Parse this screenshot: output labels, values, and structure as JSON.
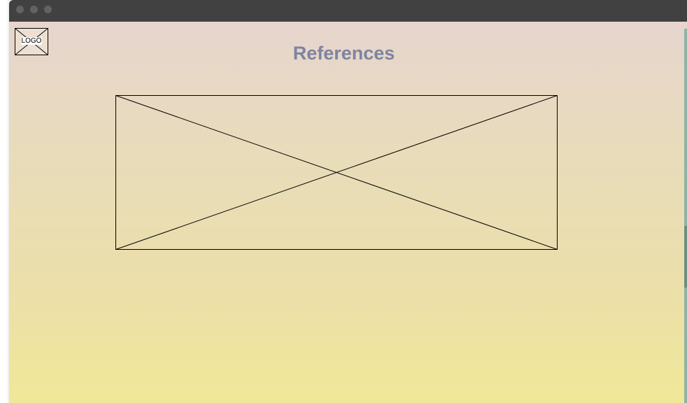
{
  "window": {
    "controls": [
      "close-control",
      "minimize-control",
      "zoom-control"
    ]
  },
  "header": {
    "logo_label": "LOGO",
    "title": "References"
  },
  "main": {
    "image_placeholder": "image-placeholder"
  },
  "colors": {
    "titlebar": "#414141",
    "title_text": "#7d84a0",
    "gradient_top": "#e7d5ce",
    "gradient_bottom": "#f0e898",
    "scrollbar": "#8fb3a6"
  }
}
